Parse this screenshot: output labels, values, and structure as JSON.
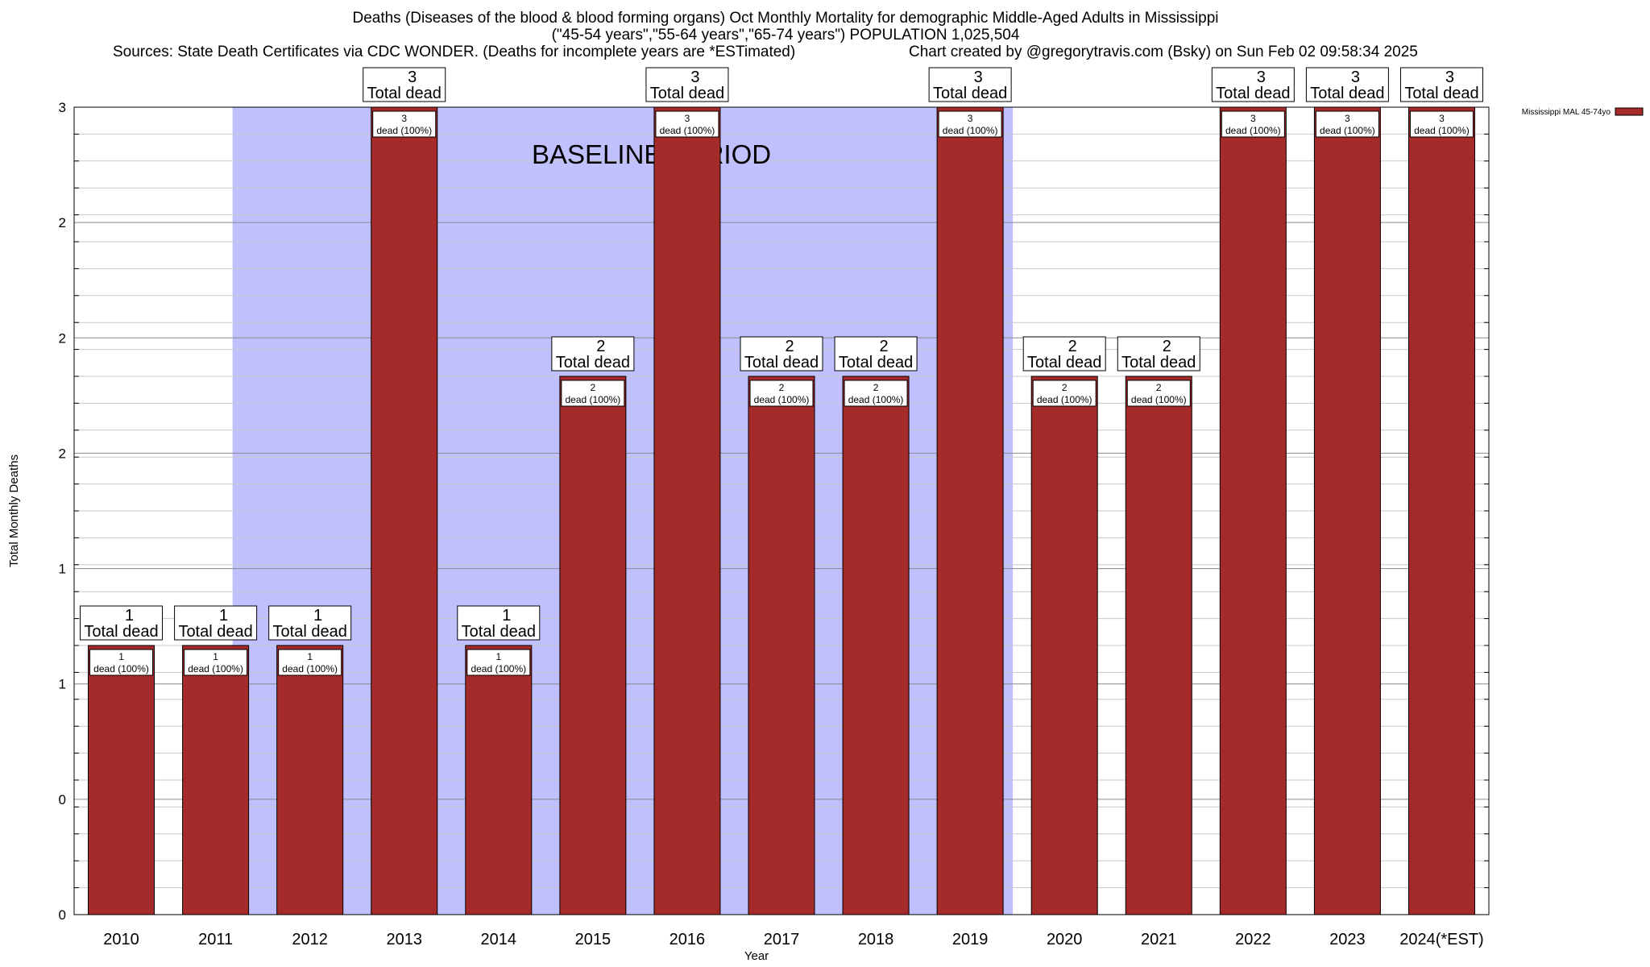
{
  "chart_data": {
    "type": "bar",
    "title": "Deaths (Diseases of the blood & blood forming organs) Oct Monthly Mortality for demographic Middle-Aged Adults in Mississippi",
    "subtitle": "(\"45-54 years\",\"55-64 years\",\"65-74 years\") POPULATION 1,025,504",
    "sources": "Sources: State Death Certificates via CDC WONDER. (Deaths for incomplete years are *ESTimated)",
    "credit": "Chart created by @gregorytravis.com (Bsky) on Sun Feb 02 09:58:34 2025",
    "xlabel": "Year",
    "ylabel": "Total Monthly Deaths",
    "categories": [
      "2010",
      "2011",
      "2012",
      "2013",
      "2014",
      "2015",
      "2016",
      "2017",
      "2018",
      "2019",
      "2020",
      "2021",
      "2022",
      "2023",
      "2024(*EST)"
    ],
    "series": [
      {
        "name": "Mississippi MAL 45-74yo",
        "color": "#a52a2a",
        "values": [
          1,
          1,
          1,
          3,
          1,
          2,
          3,
          2,
          2,
          3,
          2,
          2,
          3,
          3,
          3
        ]
      }
    ],
    "ylim": [
      0,
      3
    ],
    "ytick_labels": [
      "0",
      "0",
      "1",
      "1",
      "2",
      "2",
      "2",
      "3"
    ],
    "total_label_suffix": "Total dead",
    "inner_label_suffix": "dead (100%)",
    "baseline": {
      "label": "BASELINE PERIOD",
      "start": "2012",
      "end": "2019",
      "color": "#c0c0ff"
    },
    "grid": true,
    "legend_position": "top-right"
  }
}
